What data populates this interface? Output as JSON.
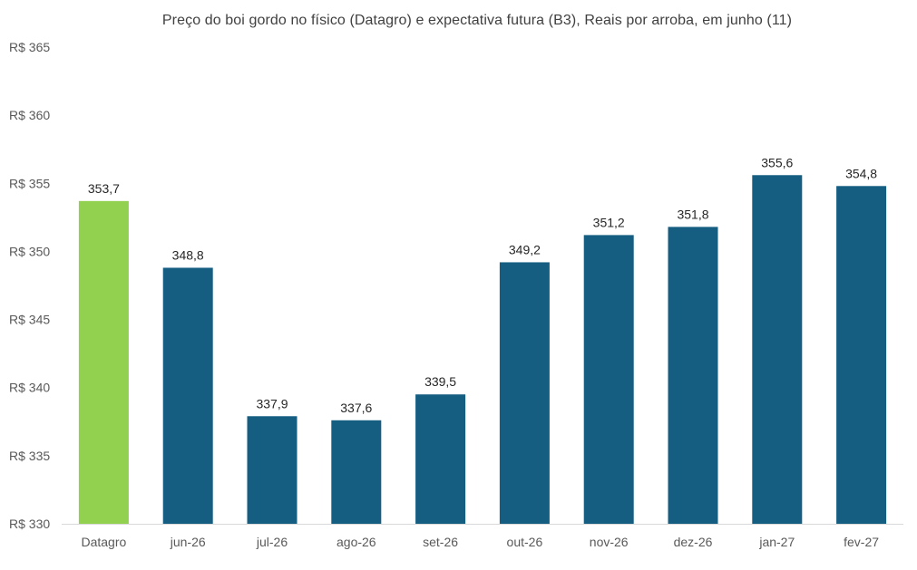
{
  "chart_data": {
    "type": "bar",
    "title": "Preço do boi gordo no físico (Datagro)  e expectativa futura (B3), Reais por arroba, em junho (11)",
    "categories": [
      "Datagro",
      "jun-26",
      "jul-26",
      "ago-26",
      "set-26",
      "out-26",
      "nov-26",
      "dez-26",
      "jan-27",
      "fev-27"
    ],
    "values": [
      353.7,
      348.8,
      337.9,
      337.6,
      339.5,
      349.2,
      351.2,
      351.8,
      355.6,
      354.8
    ],
    "data_labels": [
      "353,7",
      "348,8",
      "337,9",
      "337,6",
      "339,5",
      "349,2",
      "351,2",
      "351,8",
      "355,6",
      "354,8"
    ],
    "bar_colors": [
      "#92d050",
      "#155e82",
      "#155e82",
      "#155e82",
      "#155e82",
      "#155e82",
      "#155e82",
      "#155e82",
      "#155e82",
      "#155e82"
    ],
    "ylim": [
      330,
      365
    ],
    "yticks": [
      330,
      335,
      340,
      345,
      350,
      355,
      360,
      365
    ],
    "ytick_labels": [
      "R$ 330",
      "R$ 335",
      "R$ 340",
      "R$ 345",
      "R$ 350",
      "R$ 355",
      "R$ 360",
      "R$ 365"
    ],
    "xlabel": "",
    "ylabel": "",
    "grid": false,
    "legend": "none"
  }
}
